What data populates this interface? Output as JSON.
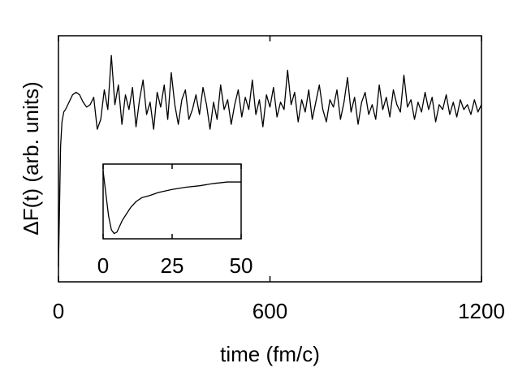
{
  "chart_data": [
    {
      "type": "line",
      "x_label": "time (fm/c)",
      "y_label": "ΔF(t) (arb. units)",
      "xlim": [
        0,
        1200
      ],
      "xticks": [
        0,
        600,
        1200
      ],
      "ylim": [
        0,
        1
      ],
      "series": [
        {
          "color": "#000000",
          "x": [
            0,
            3,
            6,
            10,
            15,
            20,
            30,
            40,
            50,
            60,
            70,
            80,
            90,
            100,
            110,
            120,
            130,
            140,
            150,
            160,
            170,
            180,
            190,
            200,
            210,
            220,
            230,
            240,
            250,
            260,
            270,
            280,
            290,
            300,
            310,
            320,
            330,
            340,
            350,
            360,
            370,
            380,
            390,
            400,
            410,
            420,
            430,
            440,
            450,
            460,
            470,
            480,
            490,
            500,
            510,
            520,
            530,
            540,
            550,
            560,
            570,
            580,
            590,
            600,
            610,
            620,
            630,
            640,
            650,
            660,
            670,
            680,
            690,
            700,
            710,
            720,
            730,
            740,
            750,
            760,
            770,
            780,
            790,
            800,
            810,
            820,
            830,
            840,
            850,
            860,
            870,
            880,
            890,
            900,
            910,
            920,
            930,
            940,
            950,
            960,
            970,
            980,
            990,
            1000,
            1010,
            1020,
            1030,
            1040,
            1050,
            1060,
            1070,
            1080,
            1090,
            1100,
            1110,
            1120,
            1130,
            1140,
            1150,
            1160,
            1170,
            1180,
            1190,
            1200
          ],
          "values": [
            0.06,
            0.3,
            0.55,
            0.65,
            0.69,
            0.7,
            0.73,
            0.76,
            0.77,
            0.76,
            0.73,
            0.71,
            0.72,
            0.75,
            0.62,
            0.66,
            0.78,
            0.7,
            0.92,
            0.72,
            0.8,
            0.64,
            0.76,
            0.7,
            0.79,
            0.63,
            0.74,
            0.82,
            0.68,
            0.73,
            0.62,
            0.77,
            0.71,
            0.8,
            0.66,
            0.85,
            0.72,
            0.64,
            0.74,
            0.78,
            0.66,
            0.7,
            0.76,
            0.68,
            0.79,
            0.72,
            0.62,
            0.73,
            0.66,
            0.8,
            0.7,
            0.74,
            0.64,
            0.72,
            0.78,
            0.67,
            0.75,
            0.7,
            0.82,
            0.68,
            0.74,
            0.63,
            0.76,
            0.71,
            0.79,
            0.67,
            0.73,
            0.7,
            0.86,
            0.72,
            0.77,
            0.65,
            0.74,
            0.69,
            0.78,
            0.66,
            0.73,
            0.8,
            0.7,
            0.65,
            0.74,
            0.71,
            0.78,
            0.66,
            0.73,
            0.83,
            0.69,
            0.75,
            0.64,
            0.73,
            0.77,
            0.68,
            0.72,
            0.66,
            0.8,
            0.7,
            0.75,
            0.67,
            0.78,
            0.72,
            0.69,
            0.84,
            0.71,
            0.74,
            0.66,
            0.73,
            0.69,
            0.77,
            0.7,
            0.75,
            0.65,
            0.72,
            0.7,
            0.76,
            0.68,
            0.73,
            0.67,
            0.74,
            0.7,
            0.72,
            0.68,
            0.74,
            0.69,
            0.72
          ]
        }
      ]
    },
    {
      "type": "line",
      "xlim": [
        0,
        50
      ],
      "xticks": [
        0,
        25,
        50
      ],
      "ylim": [
        0,
        1
      ],
      "series": [
        {
          "color": "#000000",
          "x": [
            0,
            1,
            2,
            3,
            4,
            5,
            7,
            10,
            12,
            14,
            17,
            20,
            25,
            30,
            35,
            40,
            45,
            50
          ],
          "values": [
            0.91,
            0.6,
            0.3,
            0.12,
            0.07,
            0.09,
            0.25,
            0.42,
            0.5,
            0.55,
            0.58,
            0.62,
            0.66,
            0.69,
            0.71,
            0.74,
            0.76,
            0.76
          ]
        }
      ]
    }
  ]
}
